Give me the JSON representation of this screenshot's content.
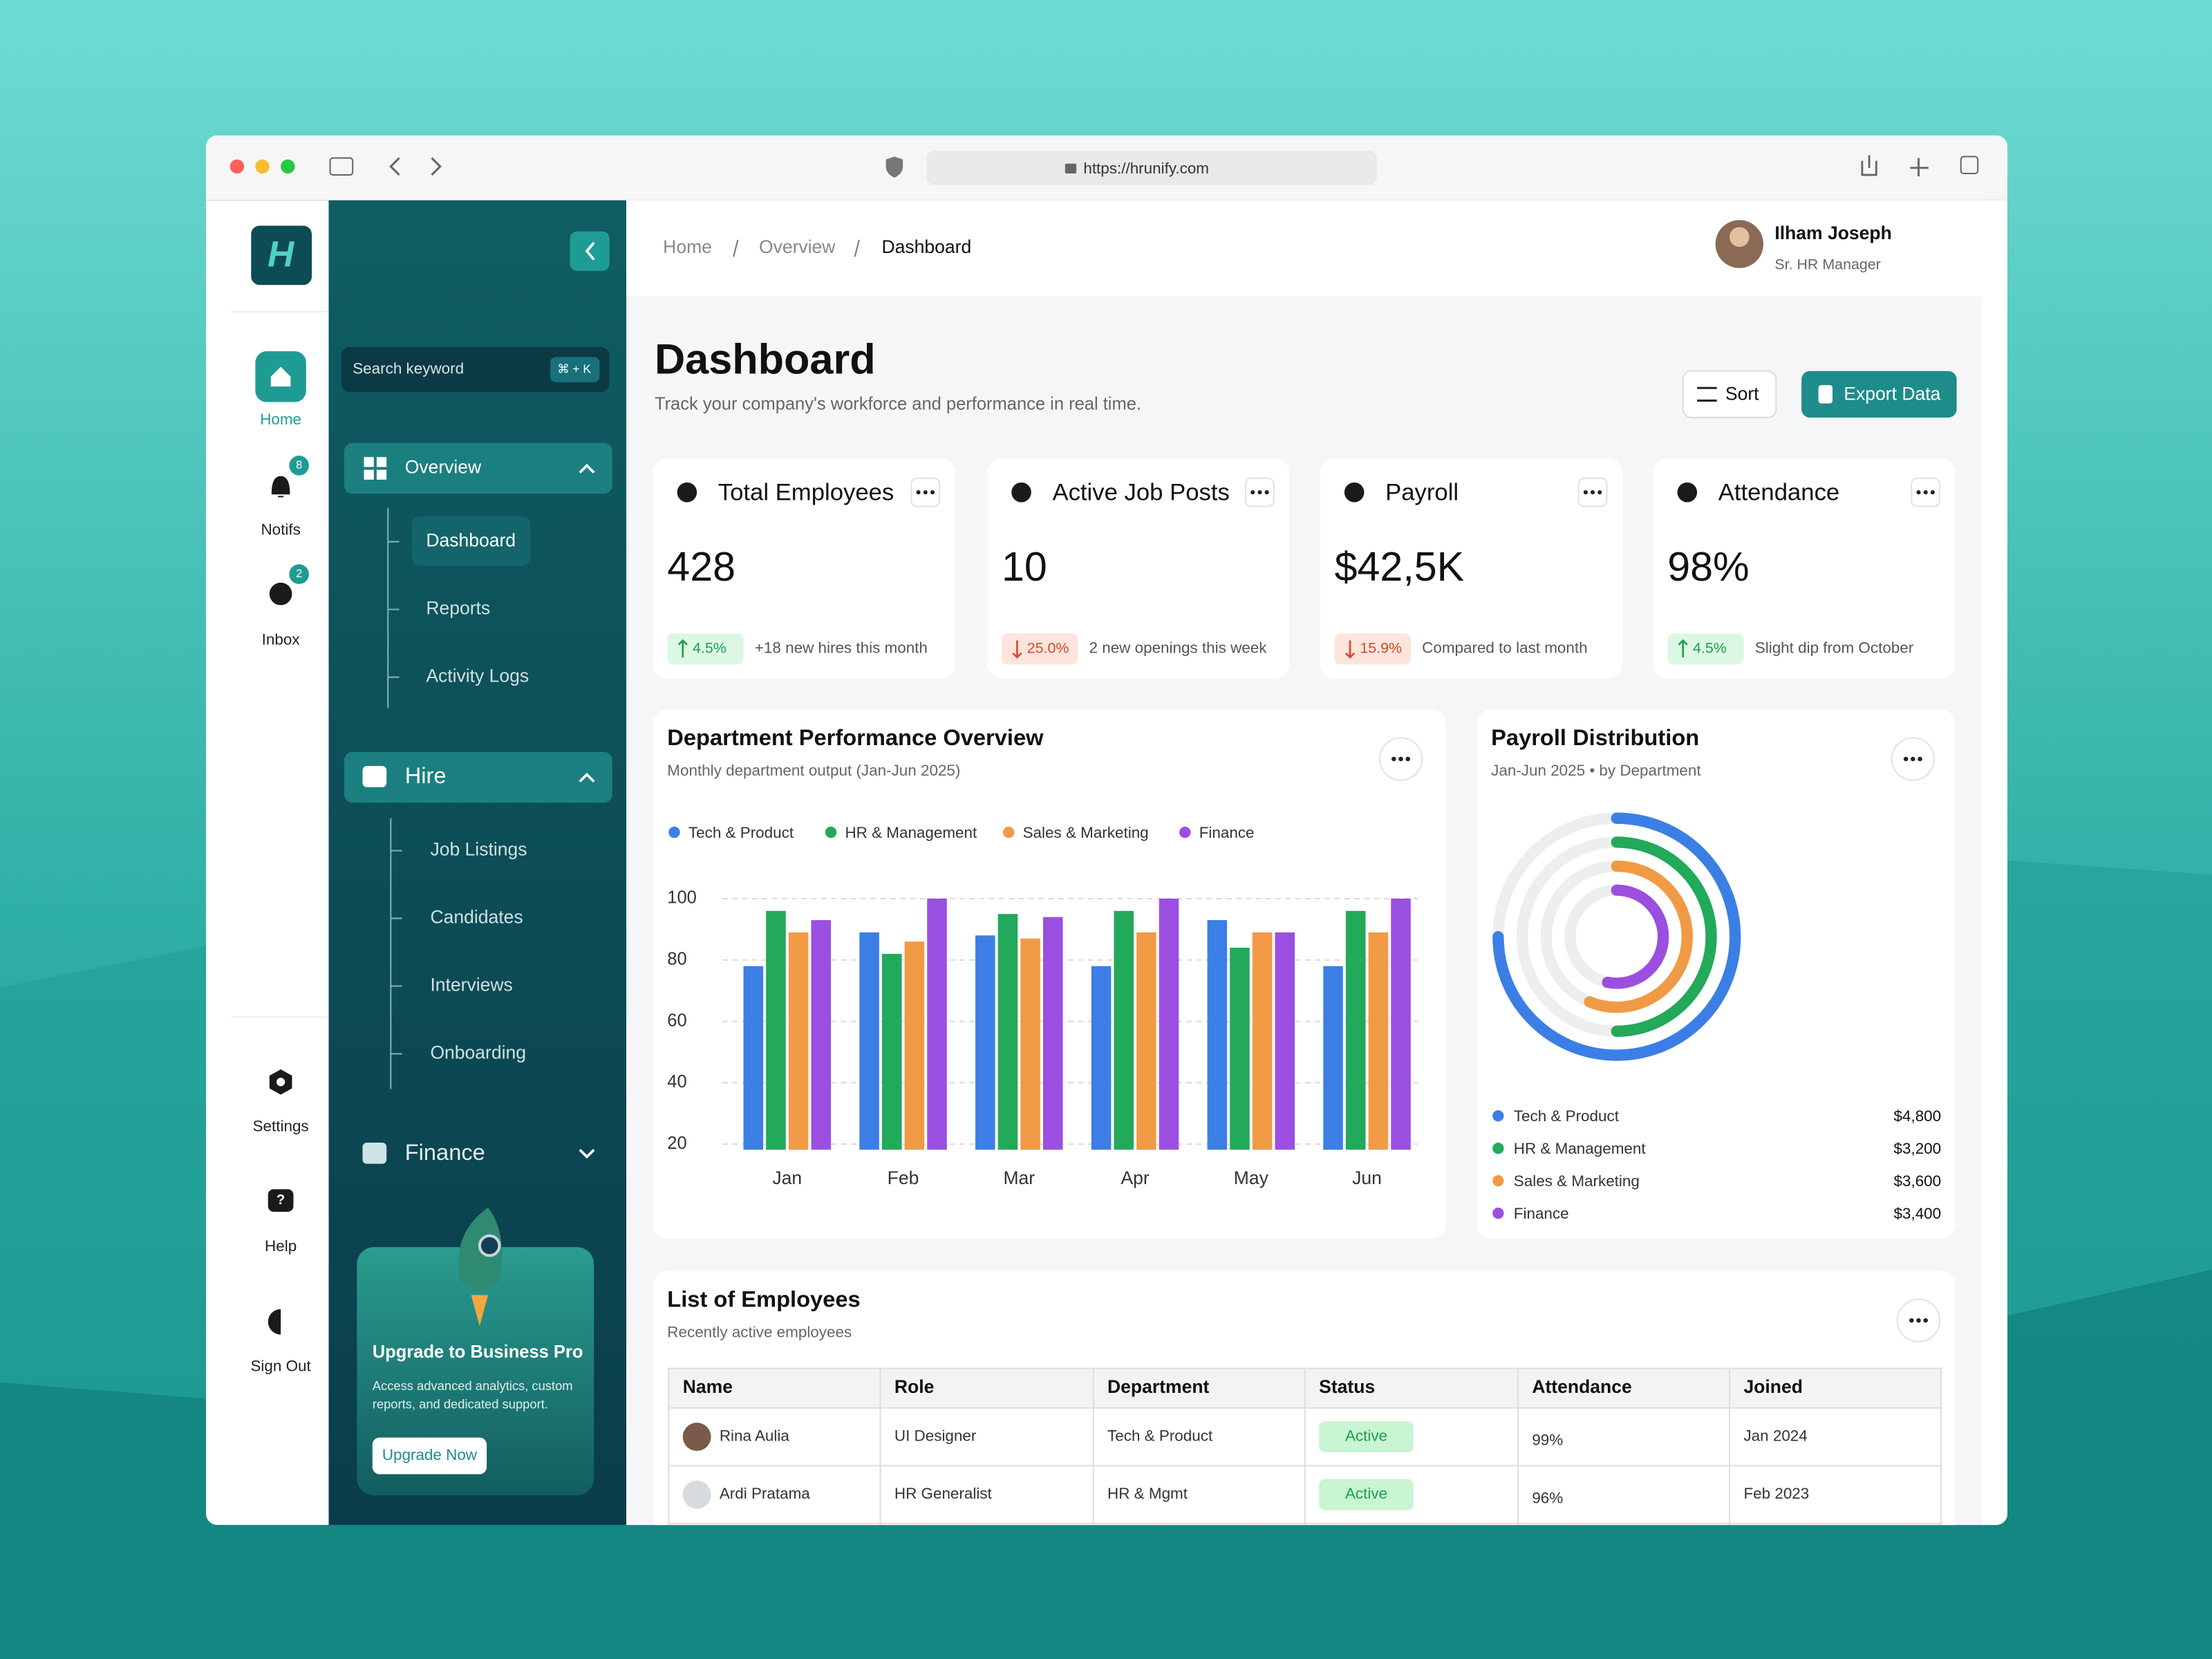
{
  "browser": {
    "url": "https://hrunify.com"
  },
  "rail": {
    "items": [
      {
        "label": "Home"
      },
      {
        "label": "Notifs",
        "badge": "8"
      },
      {
        "label": "Inbox",
        "badge": "2"
      }
    ],
    "bottom": [
      {
        "label": "Settings"
      },
      {
        "label": "Help"
      },
      {
        "label": "Sign Out"
      }
    ]
  },
  "nav": {
    "search": "Search keyword",
    "shortcut": "⌘ + K",
    "groups": [
      {
        "label": "Overview",
        "items": [
          "Dashboard",
          "Reports",
          "Activity Logs"
        ]
      },
      {
        "label": "Hire",
        "items": [
          "Job Listings",
          "Candidates",
          "Interviews",
          "Onboarding"
        ]
      },
      {
        "label": "Finance"
      }
    ],
    "promo": {
      "title": "Upgrade to Business Pro",
      "text": [
        "Access advanced analytics, custom",
        "reports, and dedicated support."
      ],
      "button": "Upgrade Now"
    }
  },
  "header": {
    "breadcrumb": [
      "Home",
      "Overview",
      "Dashboard"
    ],
    "user": {
      "name": "Ilham Joseph",
      "role": "Sr. HR Manager"
    }
  },
  "page": {
    "title": "Dashboard",
    "subtitle": "Track your company's workforce and performance in real time.",
    "actions": [
      "Sort",
      "Export Data"
    ]
  },
  "stats": [
    {
      "title": "Total Employees",
      "value": "428",
      "change": "4.5%",
      "note": "+18 new hires this month"
    },
    {
      "title": "Active Job Posts",
      "value": "10",
      "change": "25.0%",
      "note": "2 new openings this week"
    },
    {
      "title": "Payroll",
      "value": "$42,5K",
      "change": "15.9%",
      "note": "Compared to last month"
    },
    {
      "title": "Attendance",
      "value": "98%",
      "change": "4.5%",
      "note": "Slight dip from October"
    }
  ],
  "chart_data": [
    {
      "type": "bar",
      "title": "Department Performance Overview",
      "subtitle": "Monthly department output (Jan-Jun 2025)",
      "categories": [
        "Jan",
        "Feb",
        "Mar",
        "Apr",
        "May",
        "Jun"
      ],
      "series": [
        {
          "name": "Tech & Product",
          "color": "#3b7fe6",
          "values": [
            78,
            89,
            88,
            78,
            93,
            78
          ]
        },
        {
          "name": "HR & Management",
          "color": "#22a95a",
          "values": [
            96,
            82,
            95,
            96,
            84,
            96
          ]
        },
        {
          "name": "Sales & Marketing",
          "color": "#f19a45",
          "values": [
            89,
            86,
            87,
            89,
            89,
            89
          ]
        },
        {
          "name": "Finance",
          "color": "#9b4fe0",
          "values": [
            93,
            100,
            94,
            100,
            89,
            100
          ]
        }
      ],
      "ylim": [
        20,
        100
      ],
      "yticks": [
        20,
        40,
        60,
        80,
        100
      ],
      "grid": true
    },
    {
      "type": "radial",
      "title": "Payroll Distribution",
      "subtitle": "Jan-Jun 2025 • by Department",
      "categories": [
        "Tech & Product",
        "HR & Management",
        "Sales & Marketing",
        "Finance"
      ],
      "values": [
        4800,
        3200,
        3600,
        3400
      ],
      "value_labels": [
        "$4,800",
        "$3,200",
        "$3,600",
        "$3,400"
      ],
      "colors": [
        "#3b7fe6",
        "#22a95a",
        "#f19a45",
        "#9b4fe0"
      ]
    }
  ],
  "employees": {
    "title": "List of Employees",
    "subtitle": "Recently active employees",
    "columns": [
      "Name",
      "Role",
      "Department",
      "Status",
      "Attendance",
      "Joined"
    ],
    "rows": [
      [
        "Rina Aulia",
        "UI Designer",
        "Tech & Product",
        "Active",
        "99%",
        "Jan 2024"
      ],
      [
        "Ardi Pratama",
        "HR Generalist",
        "HR & Mgmt",
        "Active",
        "96%",
        "Feb 2023"
      ]
    ]
  }
}
